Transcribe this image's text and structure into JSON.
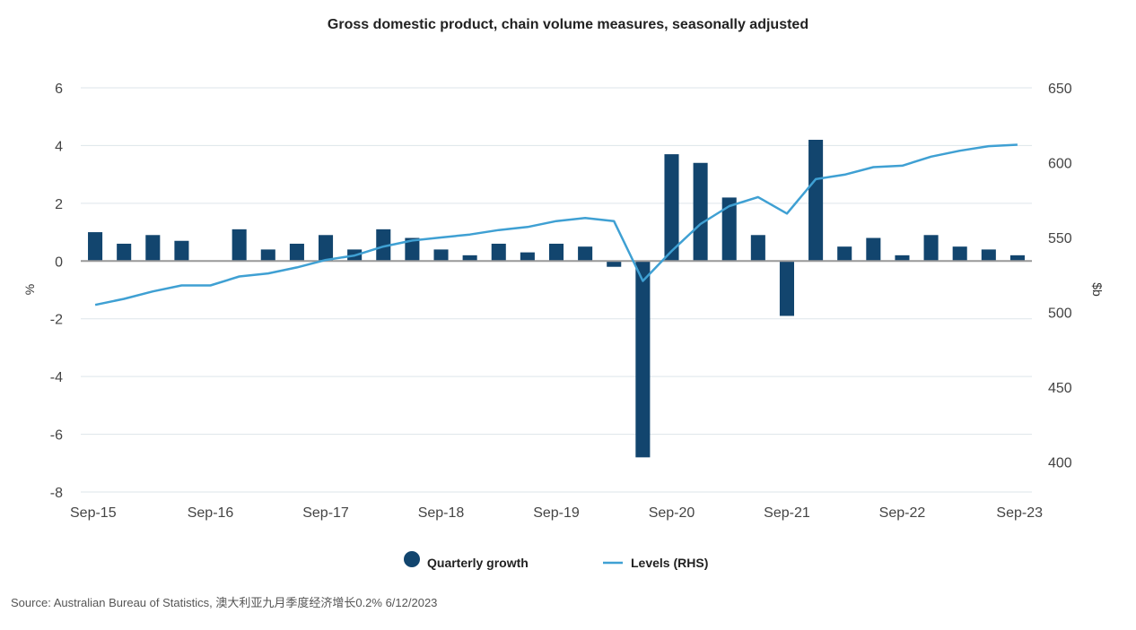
{
  "colors": {
    "bar": "#12456e",
    "line": "#3fa0d3",
    "grid": "#dde5ea",
    "zero": "#999999"
  },
  "footer": {
    "source": "Source: Australian Bureau of Statistics, 澳大利亚九月季度经济增长0.2% 6/12/2023"
  },
  "chart_data": {
    "type": "bar",
    "title": "Gross domestic product, chain volume measures, seasonally adjusted",
    "ylabel": "%",
    "y2label": "$b",
    "ylim": [
      -8,
      6
    ],
    "y2lim": [
      380,
      650
    ],
    "yticks": [
      6,
      4,
      2,
      0,
      -2,
      -4,
      -6,
      -8
    ],
    "y2ticks": [
      650,
      600,
      550,
      500,
      450,
      400
    ],
    "xtick_labels": [
      "Sep-15",
      "Sep-16",
      "Sep-17",
      "Sep-18",
      "Sep-19",
      "Sep-20",
      "Sep-21",
      "Sep-22",
      "Sep-23"
    ],
    "legend_position": "bottom",
    "categories": [
      "Sep-15",
      "Dec-15",
      "Mar-16",
      "Jun-16",
      "Sep-16",
      "Dec-16",
      "Mar-17",
      "Jun-17",
      "Sep-17",
      "Dec-17",
      "Mar-18",
      "Jun-18",
      "Sep-18",
      "Dec-18",
      "Mar-19",
      "Jun-19",
      "Sep-19",
      "Dec-19",
      "Mar-20",
      "Jun-20",
      "Sep-20",
      "Dec-20",
      "Mar-21",
      "Jun-21",
      "Sep-21",
      "Dec-21",
      "Mar-22",
      "Jun-22",
      "Sep-22",
      "Dec-22",
      "Mar-23",
      "Jun-23",
      "Sep-23"
    ],
    "series": [
      {
        "name": "Quarterly growth",
        "type": "bar",
        "axis": "left",
        "values": [
          1.0,
          0.6,
          0.9,
          0.7,
          0.0,
          1.1,
          0.4,
          0.6,
          0.9,
          0.4,
          1.1,
          0.8,
          0.4,
          0.2,
          0.6,
          0.3,
          0.6,
          0.5,
          -0.2,
          -6.8,
          3.7,
          3.4,
          2.2,
          0.9,
          -1.9,
          4.2,
          0.5,
          0.8,
          0.2,
          0.9,
          0.5,
          0.4,
          0.2
        ]
      },
      {
        "name": "Levels (RHS)",
        "type": "line",
        "axis": "right",
        "values": [
          505,
          509,
          514,
          518,
          518,
          524,
          526,
          530,
          535,
          538,
          544,
          548,
          550,
          552,
          555,
          557,
          561,
          563,
          561,
          521,
          541,
          559,
          571,
          577,
          566,
          589,
          592,
          597,
          598,
          604,
          608,
          611,
          612
        ]
      }
    ]
  }
}
